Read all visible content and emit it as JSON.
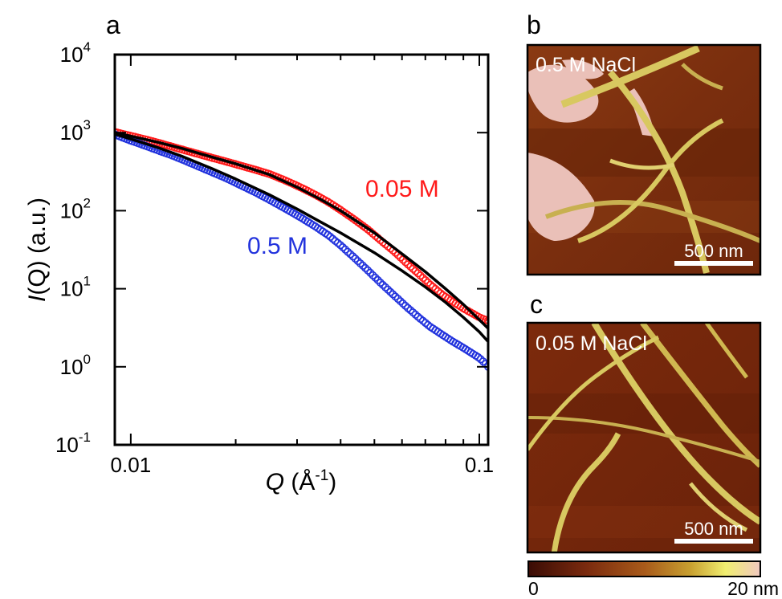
{
  "panels": {
    "a": "a",
    "b": "b",
    "c": "c"
  },
  "chart_data": {
    "type": "scatter",
    "x_scale": "log",
    "y_scale": "log",
    "xlim": [
      0.009,
      0.106
    ],
    "ylim": [
      0.1,
      10000
    ],
    "xticks": [
      {
        "value": 0.01,
        "label": "0.01"
      },
      {
        "value": 0.1,
        "label": "0.1"
      }
    ],
    "yticks": [
      {
        "value": 0.1,
        "base": "10",
        "exp": "-1"
      },
      {
        "value": 1,
        "base": "10",
        "exp": "0"
      },
      {
        "value": 10,
        "base": "10",
        "exp": "1"
      },
      {
        "value": 100,
        "base": "10",
        "exp": "2"
      },
      {
        "value": 1000,
        "base": "10",
        "exp": "3"
      },
      {
        "value": 10000,
        "base": "10",
        "exp": "4"
      }
    ],
    "xlabel": {
      "symbol": "Q",
      "unit": " (Å",
      "exp": "-1",
      "close": ")"
    },
    "ylabel": {
      "symbol": "I",
      "rest": "(Q) (a.u.)"
    },
    "grid": false,
    "series": [
      {
        "name": "0.05 M",
        "color": "#ff1a1a",
        "marker": "open-circle",
        "x": [
          0.009,
          0.0095,
          0.01,
          0.011,
          0.012,
          0.013,
          0.014,
          0.015,
          0.017,
          0.019,
          0.021,
          0.023,
          0.025,
          0.028,
          0.031,
          0.034,
          0.037,
          0.04,
          0.044,
          0.048,
          0.052,
          0.057,
          0.062,
          0.067,
          0.072,
          0.078,
          0.084,
          0.09,
          0.095,
          0.1,
          0.104,
          0.106
        ],
        "y": [
          1020,
          960,
          910,
          820,
          740,
          670,
          610,
          560,
          480,
          420,
          370,
          330,
          295,
          240,
          195,
          158,
          128,
          102,
          76,
          57,
          42,
          30,
          21,
          15.5,
          11.5,
          8.5,
          6.8,
          5.6,
          4.9,
          4.3,
          4.0,
          3.9
        ]
      },
      {
        "name": "0.5 M",
        "color": "#2233dd",
        "marker": "open-circle",
        "x": [
          0.009,
          0.0095,
          0.01,
          0.011,
          0.012,
          0.013,
          0.014,
          0.015,
          0.017,
          0.019,
          0.021,
          0.023,
          0.025,
          0.028,
          0.031,
          0.034,
          0.037,
          0.04,
          0.044,
          0.048,
          0.052,
          0.057,
          0.062,
          0.067,
          0.072,
          0.078,
          0.084,
          0.09,
          0.095,
          0.1,
          0.104,
          0.106
        ],
        "y": [
          950,
          860,
          790,
          680,
          590,
          520,
          455,
          400,
          315,
          255,
          205,
          168,
          138,
          104,
          80,
          62,
          48,
          36,
          24.5,
          17,
          12,
          8.2,
          5.8,
          4.3,
          3.3,
          2.6,
          2.1,
          1.75,
          1.5,
          1.3,
          1.1,
          1.0
        ]
      }
    ],
    "fits": [
      {
        "color": "#000000",
        "x": [
          0.009,
          0.01,
          0.012,
          0.014,
          0.017,
          0.02,
          0.025,
          0.03,
          0.035,
          0.04,
          0.05,
          0.06,
          0.07,
          0.08,
          0.09,
          0.1,
          0.106
        ],
        "y": [
          1000,
          900,
          750,
          630,
          490,
          400,
          290,
          200,
          140,
          100,
          52,
          28,
          16.5,
          10,
          6.3,
          4.0,
          3.1
        ]
      },
      {
        "color": "#000000",
        "x": [
          0.009,
          0.01,
          0.012,
          0.014,
          0.017,
          0.02,
          0.025,
          0.03,
          0.035,
          0.04,
          0.05,
          0.06,
          0.07,
          0.08,
          0.09,
          0.1,
          0.106
        ],
        "y": [
          960,
          830,
          640,
          500,
          350,
          255,
          160,
          105,
          72,
          52,
          29,
          17,
          10.5,
          6.7,
          4.3,
          2.8,
          2.1
        ]
      }
    ]
  },
  "afm": {
    "b": {
      "label": "0.5 M NaCl",
      "scale_bar": "500 nm"
    },
    "c": {
      "label": "0.05 M NaCl",
      "scale_bar": "500 nm"
    },
    "colorbar": {
      "min_label": "0",
      "max_label": "20 nm",
      "stops": [
        "#3a0c05",
        "#7a2a0e",
        "#a85a1a",
        "#c8a030",
        "#f0ee70",
        "#f0c8c0"
      ]
    }
  }
}
